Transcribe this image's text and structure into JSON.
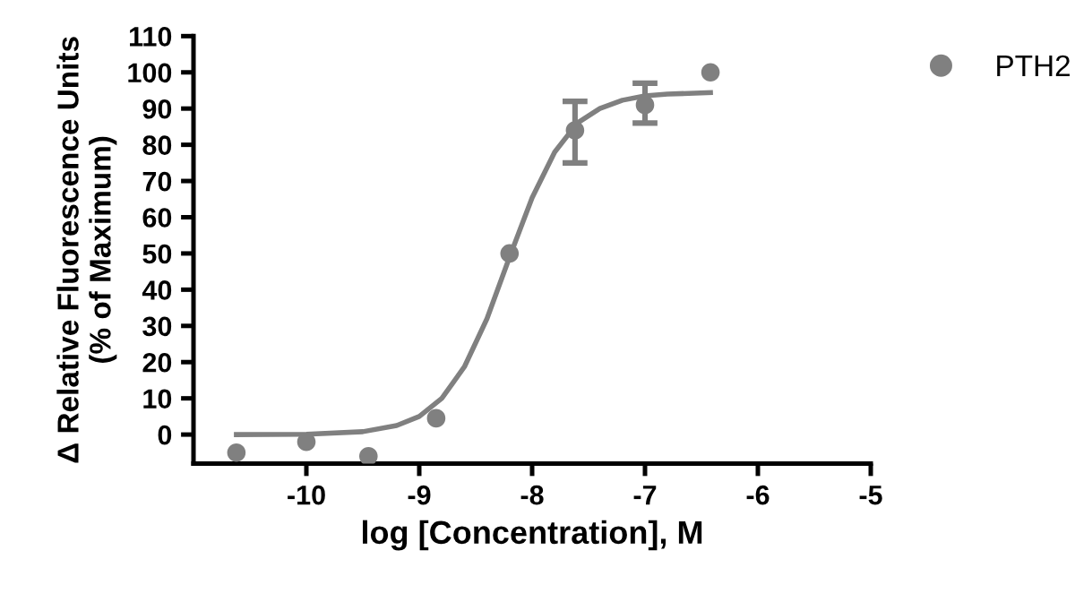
{
  "chart_data": {
    "type": "scatter",
    "xlabel": "log [Concentration], M",
    "ylabel": "Δ Relative Fluorescence Units\n(% of Maximum)",
    "xlim": [
      -11,
      -5
    ],
    "xticks": [
      -10,
      -9,
      -8,
      -7,
      -6,
      -5
    ],
    "ylim": [
      -8,
      110
    ],
    "yticks": [
      0,
      10,
      20,
      30,
      40,
      50,
      60,
      70,
      80,
      90,
      100,
      110
    ],
    "grid": false,
    "legend": "top right",
    "series": [
      {
        "name": "PTH2",
        "marker": "circle",
        "color": "#808080",
        "x": [
          -10.62,
          -10.0,
          -9.45,
          -8.85,
          -8.2,
          -7.62,
          -7.0,
          -6.42
        ],
        "values": [
          -5,
          -2,
          -6,
          4.5,
          50,
          84,
          91,
          100
        ],
        "errors": [
          null,
          null,
          null,
          null,
          null,
          [
            75,
            92
          ],
          [
            86,
            97
          ],
          null
        ]
      },
      {
        "type": "line",
        "marker": "none",
        "color": "#808080",
        "line_style": "solid",
        "x": [
          -10.62,
          -10.0,
          -9.5,
          -9.2,
          -9.0,
          -8.8,
          -8.6,
          -8.4,
          -8.2,
          -8.0,
          -7.8,
          -7.6,
          -7.4,
          -7.2,
          -7.0,
          -6.8,
          -6.42
        ],
        "values": [
          0,
          0.1,
          0.8,
          2.5,
          5,
          10,
          18.7,
          32,
          49,
          65.4,
          78,
          86,
          90,
          92.3,
          93.5,
          94,
          94.4
        ]
      }
    ]
  }
}
